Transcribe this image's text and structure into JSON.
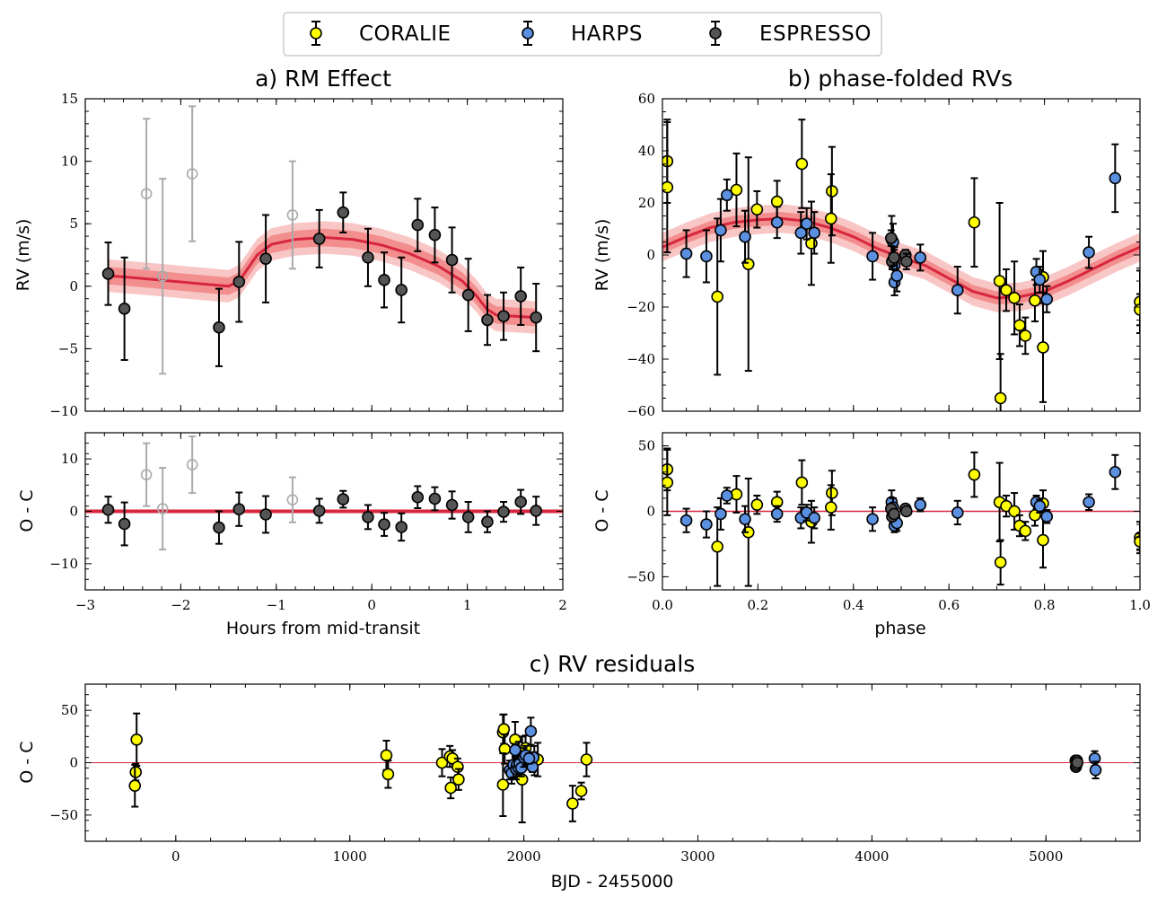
{
  "colors": {
    "coralie": "#ffff00",
    "harps": "#5b8fe0",
    "espresso": "#555555",
    "model": "#d7263d",
    "band_inner": "#f08080",
    "band_outer": "#f8b8b8",
    "excluded": "#aaaaaa"
  },
  "legend": {
    "coralie": "CORALIE",
    "harps": "HARPS",
    "espresso": "ESPRESSO"
  },
  "chart_data": [
    {
      "id": "rm",
      "type": "scatter",
      "title": "a) RM Effect",
      "xlabel": "Hours from mid-transit",
      "ylabel": "RV (m/s)",
      "xlim": [
        -3,
        2
      ],
      "ylim": [
        -10,
        15
      ],
      "yticks": [
        -10,
        -5,
        0,
        5,
        10,
        15
      ],
      "xticks": [
        -3,
        -2,
        -1,
        0,
        1,
        2
      ],
      "espresso": [
        {
          "x": -2.76,
          "y": 1.0,
          "e": 2.5
        },
        {
          "x": -2.59,
          "y": -1.8,
          "e": 4.1
        },
        {
          "x": -1.6,
          "y": -3.3,
          "e": 3.1
        },
        {
          "x": -1.39,
          "y": 0.35,
          "e": 3.2
        },
        {
          "x": -1.11,
          "y": 2.2,
          "e": 3.5
        },
        {
          "x": -0.55,
          "y": 3.8,
          "e": 2.3
        },
        {
          "x": -0.3,
          "y": 5.9,
          "e": 1.6
        },
        {
          "x": -0.04,
          "y": 2.3,
          "e": 2.3
        },
        {
          "x": 0.13,
          "y": 0.5,
          "e": 2.2
        },
        {
          "x": 0.31,
          "y": -0.3,
          "e": 2.6
        },
        {
          "x": 0.48,
          "y": 4.9,
          "e": 2.1
        },
        {
          "x": 0.66,
          "y": 4.1,
          "e": 2.2
        },
        {
          "x": 0.84,
          "y": 2.1,
          "e": 2.6
        },
        {
          "x": 1.01,
          "y": -0.7,
          "e": 2.9
        },
        {
          "x": 1.21,
          "y": -2.7,
          "e": 2.0
        },
        {
          "x": 1.38,
          "y": -2.4,
          "e": 1.9
        },
        {
          "x": 1.56,
          "y": -0.8,
          "e": 2.3
        },
        {
          "x": 1.72,
          "y": -2.5,
          "e": 2.7
        }
      ],
      "excluded": [
        {
          "x": -2.36,
          "y": 7.4,
          "e": 6.0
        },
        {
          "x": -2.19,
          "y": 0.8,
          "e": 7.8
        },
        {
          "x": -1.88,
          "y": 9.0,
          "e": 5.4
        },
        {
          "x": -0.83,
          "y": 5.7,
          "e": 4.3
        }
      ],
      "model": [
        [
          -2.76,
          0.85
        ],
        [
          -2.3,
          0.55
        ],
        [
          -1.8,
          0.2
        ],
        [
          -1.5,
          0.0
        ],
        [
          -1.39,
          0.4
        ],
        [
          -1.2,
          2.5
        ],
        [
          -1.05,
          3.35
        ],
        [
          -0.8,
          3.75
        ],
        [
          -0.5,
          3.9
        ],
        [
          -0.2,
          3.75
        ],
        [
          0.1,
          3.3
        ],
        [
          0.4,
          2.6
        ],
        [
          0.7,
          1.6
        ],
        [
          0.95,
          0.4
        ],
        [
          1.1,
          -0.8
        ],
        [
          1.2,
          -1.8
        ],
        [
          1.3,
          -2.3
        ],
        [
          1.5,
          -2.4
        ],
        [
          1.72,
          -2.5
        ]
      ],
      "band_width": [
        0.7,
        1.3
      ]
    },
    {
      "id": "rm-resid",
      "type": "scatter",
      "ylabel": "O - C",
      "xlim": [
        -3,
        2
      ],
      "ylim": [
        -15,
        15
      ],
      "yticks": [
        -10,
        0,
        10
      ],
      "espresso": [
        {
          "x": -2.76,
          "y": 0.3,
          "e": 2.5
        },
        {
          "x": -2.59,
          "y": -2.4,
          "e": 4.1
        },
        {
          "x": -1.6,
          "y": -3.1,
          "e": 3.1
        },
        {
          "x": -1.39,
          "y": 0.4,
          "e": 3.2
        },
        {
          "x": -1.11,
          "y": -0.6,
          "e": 3.5
        },
        {
          "x": -0.55,
          "y": 0.1,
          "e": 2.3
        },
        {
          "x": -0.3,
          "y": 2.3,
          "e": 1.6
        },
        {
          "x": -0.04,
          "y": -1.1,
          "e": 2.3
        },
        {
          "x": 0.13,
          "y": -2.5,
          "e": 2.2
        },
        {
          "x": 0.31,
          "y": -3.0,
          "e": 2.6
        },
        {
          "x": 0.48,
          "y": 2.7,
          "e": 2.1
        },
        {
          "x": 0.66,
          "y": 2.4,
          "e": 2.2
        },
        {
          "x": 0.84,
          "y": 1.2,
          "e": 2.6
        },
        {
          "x": 1.01,
          "y": -1.1,
          "e": 2.9
        },
        {
          "x": 1.21,
          "y": -2.0,
          "e": 2.0
        },
        {
          "x": 1.38,
          "y": -0.1,
          "e": 1.9
        },
        {
          "x": 1.56,
          "y": 1.8,
          "e": 2.3
        },
        {
          "x": 1.72,
          "y": 0.1,
          "e": 2.7
        }
      ],
      "excluded": [
        {
          "x": -2.36,
          "y": 7.0,
          "e": 6.0
        },
        {
          "x": -2.19,
          "y": 0.5,
          "e": 7.8
        },
        {
          "x": -1.88,
          "y": 8.9,
          "e": 5.4
        },
        {
          "x": -0.83,
          "y": 2.2,
          "e": 4.3
        }
      ]
    },
    {
      "id": "phase",
      "type": "scatter",
      "title": "b) phase-folded RVs",
      "xlabel": "phase",
      "ylabel": "RV (m/s)",
      "xlim": [
        0,
        1
      ],
      "ylim": [
        -60,
        60
      ],
      "yticks": [
        -60,
        -40,
        -20,
        0,
        20,
        40,
        60
      ],
      "xticks": [
        "0.0",
        "0.2",
        "0.4",
        "0.6",
        "0.8",
        "1.0"
      ],
      "coralie": [
        {
          "x": 0.01,
          "y": 36,
          "e": 16
        },
        {
          "x": 0.01,
          "y": 26,
          "e": 25
        },
        {
          "x": 0.115,
          "y": -16,
          "e": 30
        },
        {
          "x": 0.155,
          "y": 25,
          "e": 14
        },
        {
          "x": 0.18,
          "y": -3.5,
          "e": 41
        },
        {
          "x": 0.198,
          "y": 17.5,
          "e": 7
        },
        {
          "x": 0.24,
          "y": 20.5,
          "e": 8
        },
        {
          "x": 0.292,
          "y": 35,
          "e": 17
        },
        {
          "x": 0.312,
          "y": 4.5,
          "e": 16
        },
        {
          "x": 0.355,
          "y": 24.5,
          "e": 17
        },
        {
          "x": 0.353,
          "y": 14,
          "e": 17
        },
        {
          "x": 0.653,
          "y": 12.5,
          "e": 17
        },
        {
          "x": 0.706,
          "y": -10,
          "e": 30
        },
        {
          "x": 0.708,
          "y": -55,
          "e": 17
        },
        {
          "x": 0.72,
          "y": -13.5,
          "e": 8
        },
        {
          "x": 0.737,
          "y": -16.5,
          "e": 14
        },
        {
          "x": 0.748,
          "y": -27,
          "e": 8
        },
        {
          "x": 0.76,
          "y": -31,
          "e": 7
        },
        {
          "x": 0.78,
          "y": -17.5,
          "e": 8
        },
        {
          "x": 0.797,
          "y": -8.5,
          "e": 10
        },
        {
          "x": 0.797,
          "y": -35.5,
          "e": 21
        },
        {
          "x": 1.0,
          "y": -18,
          "e": 12
        },
        {
          "x": 1.0,
          "y": -21,
          "e": 6
        }
      ],
      "harps": [
        {
          "x": 0.05,
          "y": 0.5,
          "e": 9
        },
        {
          "x": 0.092,
          "y": -0.5,
          "e": 10
        },
        {
          "x": 0.122,
          "y": 9.5,
          "e": 12
        },
        {
          "x": 0.135,
          "y": 23,
          "e": 6
        },
        {
          "x": 0.173,
          "y": 7,
          "e": 10
        },
        {
          "x": 0.24,
          "y": 12.5,
          "e": 6
        },
        {
          "x": 0.29,
          "y": 8.5,
          "e": 8
        },
        {
          "x": 0.302,
          "y": 12,
          "e": 6
        },
        {
          "x": 0.318,
          "y": 8.5,
          "e": 8
        },
        {
          "x": 0.44,
          "y": -0.5,
          "e": 9
        },
        {
          "x": 0.48,
          "y": 6,
          "e": 9
        },
        {
          "x": 0.483,
          "y": 5,
          "e": 7
        },
        {
          "x": 0.486,
          "y": -4,
          "e": 7
        },
        {
          "x": 0.486,
          "y": -10.5,
          "e": 5
        },
        {
          "x": 0.491,
          "y": -8,
          "e": 6
        },
        {
          "x": 0.54,
          "y": -1,
          "e": 5
        },
        {
          "x": 0.618,
          "y": -13.5,
          "e": 9
        },
        {
          "x": 0.783,
          "y": -6.5,
          "e": 5
        },
        {
          "x": 0.79,
          "y": -9.5,
          "e": 5
        },
        {
          "x": 0.805,
          "y": -17,
          "e": 5
        },
        {
          "x": 0.893,
          "y": 1,
          "e": 6
        },
        {
          "x": 0.948,
          "y": 29.5,
          "e": 13
        }
      ],
      "espresso": [
        {
          "x": 0.479,
          "y": 6.5,
          "e": 3
        },
        {
          "x": 0.481,
          "y": -2.5,
          "e": 3
        },
        {
          "x": 0.485,
          "y": -1,
          "e": 3
        },
        {
          "x": 0.509,
          "y": 0,
          "e": 2
        },
        {
          "x": 0.511,
          "y": -2.5,
          "e": 3
        }
      ],
      "model": [
        [
          0.0,
          3
        ],
        [
          0.05,
          7
        ],
        [
          0.1,
          10.5
        ],
        [
          0.15,
          12.5
        ],
        [
          0.2,
          13.5
        ],
        [
          0.25,
          14
        ],
        [
          0.3,
          13
        ],
        [
          0.35,
          10.5
        ],
        [
          0.4,
          7
        ],
        [
          0.45,
          2.5
        ],
        [
          0.5,
          -1
        ],
        [
          0.55,
          -4
        ],
        [
          0.6,
          -9
        ],
        [
          0.65,
          -14
        ],
        [
          0.7,
          -16.5
        ],
        [
          0.75,
          -16
        ],
        [
          0.8,
          -14
        ],
        [
          0.85,
          -10
        ],
        [
          0.9,
          -5.5
        ],
        [
          0.95,
          -1
        ],
        [
          1.0,
          3
        ]
      ],
      "band_width": [
        2.5,
        5.5
      ]
    },
    {
      "id": "phase-resid",
      "type": "scatter",
      "ylabel": "O - C",
      "xlim": [
        0,
        1
      ],
      "ylim": [
        -60,
        60
      ],
      "yticks": [
        -50,
        0,
        50
      ],
      "coralie": [
        {
          "x": 0.01,
          "y": 32,
          "e": 16
        },
        {
          "x": 0.01,
          "y": 22,
          "e": 25
        },
        {
          "x": 0.115,
          "y": -27,
          "e": 30
        },
        {
          "x": 0.155,
          "y": 13,
          "e": 14
        },
        {
          "x": 0.18,
          "y": -16,
          "e": 41
        },
        {
          "x": 0.198,
          "y": 5,
          "e": 7
        },
        {
          "x": 0.24,
          "y": 7,
          "e": 8
        },
        {
          "x": 0.292,
          "y": 22,
          "e": 17
        },
        {
          "x": 0.312,
          "y": -8,
          "e": 16
        },
        {
          "x": 0.355,
          "y": 14,
          "e": 17
        },
        {
          "x": 0.353,
          "y": 3,
          "e": 17
        },
        {
          "x": 0.653,
          "y": 28,
          "e": 17
        },
        {
          "x": 0.706,
          "y": 7,
          "e": 30
        },
        {
          "x": 0.708,
          "y": -39,
          "e": 17
        },
        {
          "x": 0.72,
          "y": 4,
          "e": 8
        },
        {
          "x": 0.737,
          "y": 0,
          "e": 14
        },
        {
          "x": 0.748,
          "y": -11,
          "e": 8
        },
        {
          "x": 0.76,
          "y": -15,
          "e": 7
        },
        {
          "x": 0.78,
          "y": -3,
          "e": 8
        },
        {
          "x": 0.797,
          "y": 6,
          "e": 10
        },
        {
          "x": 0.797,
          "y": -22,
          "e": 21
        },
        {
          "x": 1.0,
          "y": -20,
          "e": 12
        },
        {
          "x": 1.0,
          "y": -23,
          "e": 6
        }
      ],
      "harps": [
        {
          "x": 0.05,
          "y": -7,
          "e": 9
        },
        {
          "x": 0.092,
          "y": -10,
          "e": 10
        },
        {
          "x": 0.122,
          "y": -2,
          "e": 12
        },
        {
          "x": 0.135,
          "y": 12,
          "e": 6
        },
        {
          "x": 0.173,
          "y": -6,
          "e": 10
        },
        {
          "x": 0.24,
          "y": -2,
          "e": 6
        },
        {
          "x": 0.29,
          "y": -5,
          "e": 8
        },
        {
          "x": 0.302,
          "y": -1,
          "e": 6
        },
        {
          "x": 0.318,
          "y": -5,
          "e": 8
        },
        {
          "x": 0.44,
          "y": -6,
          "e": 9
        },
        {
          "x": 0.48,
          "y": 7,
          "e": 9
        },
        {
          "x": 0.483,
          "y": 3,
          "e": 7
        },
        {
          "x": 0.486,
          "y": -6,
          "e": 7
        },
        {
          "x": 0.486,
          "y": -11,
          "e": 5
        },
        {
          "x": 0.491,
          "y": -9,
          "e": 6
        },
        {
          "x": 0.54,
          "y": 5,
          "e": 5
        },
        {
          "x": 0.618,
          "y": -1,
          "e": 9
        },
        {
          "x": 0.783,
          "y": 7,
          "e": 5
        },
        {
          "x": 0.79,
          "y": 4,
          "e": 5
        },
        {
          "x": 0.805,
          "y": -4,
          "e": 5
        },
        {
          "x": 0.893,
          "y": 7,
          "e": 6
        },
        {
          "x": 0.948,
          "y": 30,
          "e": 13
        }
      ],
      "espresso": [
        {
          "x": 0.479,
          "y": 2,
          "e": 3
        },
        {
          "x": 0.481,
          "y": -4,
          "e": 3
        },
        {
          "x": 0.485,
          "y": -2,
          "e": 3
        },
        {
          "x": 0.509,
          "y": 2,
          "e": 2
        },
        {
          "x": 0.511,
          "y": 0,
          "e": 3
        }
      ]
    },
    {
      "id": "bjd",
      "type": "scatter",
      "title": "c) RV residuals",
      "xlabel": "BJD - 2455000",
      "ylabel": "O - C",
      "xlim": [
        -520,
        5540
      ],
      "ylim": [
        -75,
        75
      ],
      "yticks": [
        -50,
        0,
        50
      ],
      "xticks": [
        0,
        1000,
        2000,
        3000,
        4000,
        5000
      ],
      "coralie": [
        {
          "x": -225,
          "y": 22,
          "e": 25
        },
        {
          "x": -230,
          "y": -9,
          "e": 8
        },
        {
          "x": -235,
          "y": -22,
          "e": 20
        },
        {
          "x": 1210,
          "y": 7,
          "e": 14
        },
        {
          "x": 1220,
          "y": -11,
          "e": 13
        },
        {
          "x": 1530,
          "y": 0,
          "e": 13
        },
        {
          "x": 1575,
          "y": 6,
          "e": 10
        },
        {
          "x": 1580,
          "y": -24,
          "e": 10
        },
        {
          "x": 1590,
          "y": 4,
          "e": 8
        },
        {
          "x": 1620,
          "y": -4,
          "e": 8
        },
        {
          "x": 1625,
          "y": -16,
          "e": 10
        },
        {
          "x": 1880,
          "y": 29,
          "e": 17
        },
        {
          "x": 1885,
          "y": 32,
          "e": 14
        },
        {
          "x": 1890,
          "y": 13,
          "e": 14
        },
        {
          "x": 1880,
          "y": -21,
          "e": 30
        },
        {
          "x": 1950,
          "y": 22,
          "e": 17
        },
        {
          "x": 1970,
          "y": 8,
          "e": 12
        },
        {
          "x": 1990,
          "y": -16,
          "e": 41
        },
        {
          "x": 2010,
          "y": 14,
          "e": 12
        },
        {
          "x": 2060,
          "y": 2,
          "e": 14
        },
        {
          "x": 2080,
          "y": 3,
          "e": 16
        },
        {
          "x": 2280,
          "y": -39,
          "e": 17
        },
        {
          "x": 2330,
          "y": -27,
          "e": 8
        },
        {
          "x": 2360,
          "y": 3,
          "e": 16
        }
      ],
      "harps": [
        {
          "x": 1920,
          "y": -7,
          "e": 9
        },
        {
          "x": 1930,
          "y": -10,
          "e": 10
        },
        {
          "x": 1940,
          "y": -2,
          "e": 12
        },
        {
          "x": 1950,
          "y": 12,
          "e": 6
        },
        {
          "x": 1955,
          "y": -6,
          "e": 10
        },
        {
          "x": 1960,
          "y": -2,
          "e": 6
        },
        {
          "x": 1970,
          "y": -5,
          "e": 8
        },
        {
          "x": 1975,
          "y": -1,
          "e": 6
        },
        {
          "x": 1985,
          "y": -5,
          "e": 8
        },
        {
          "x": 2000,
          "y": 5,
          "e": 9
        },
        {
          "x": 2010,
          "y": 7,
          "e": 9
        },
        {
          "x": 2040,
          "y": 30,
          "e": 13
        },
        {
          "x": 2050,
          "y": -4,
          "e": 5
        },
        {
          "x": 2055,
          "y": 5,
          "e": 5
        },
        {
          "x": 2030,
          "y": 4,
          "e": 5
        },
        {
          "x": 5280,
          "y": 4,
          "e": 7
        },
        {
          "x": 5285,
          "y": -7,
          "e": 8
        }
      ],
      "espresso": [
        {
          "x": 5170,
          "y": 2,
          "e": 3
        },
        {
          "x": 5172,
          "y": -4,
          "e": 3
        },
        {
          "x": 5175,
          "y": -2,
          "e": 3
        },
        {
          "x": 5178,
          "y": 2,
          "e": 2
        },
        {
          "x": 5180,
          "y": 0,
          "e": 3
        }
      ]
    }
  ]
}
